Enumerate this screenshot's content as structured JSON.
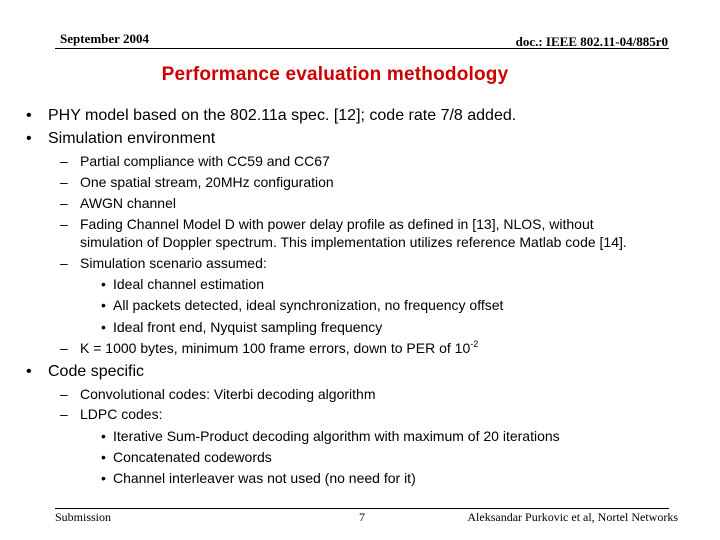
{
  "header": {
    "date": "September 2004",
    "doc_id": "doc.: IEEE 802.11-04/885r0"
  },
  "title": "Performance evaluation methodology",
  "body": {
    "b1": "PHY model based on the 802.11a spec. [12]; code rate 7/8 added.",
    "b2": "Simulation environment",
    "b2_items": [
      "Partial compliance with CC59 and CC67",
      "One spatial stream, 20MHz configuration",
      "AWGN channel",
      "Fading Channel Model D with power delay profile as defined in [13], NLOS,  without",
      "simulation of Doppler spectrum. This implementation utilizes reference Matlab code [14].",
      "Simulation scenario assumed:"
    ],
    "b2_sub": [
      "Ideal channel estimation",
      "All packets detected, ideal synchronization, no frequency offset",
      "Ideal front end, Nyquist sampling frequency"
    ],
    "b2_last": "K = 1000 bytes, minimum 100 frame errors, down to PER of 10",
    "b2_last_exp": "-2",
    "b3": "Code specific",
    "b3_items": [
      "Convolutional codes: Viterbi decoding algorithm",
      "LDPC codes:"
    ],
    "b3_sub": [
      "Iterative Sum-Product decoding algorithm with maximum of 20 iterations",
      "Concatenated codewords",
      "Channel interleaver was not used (no need for it)"
    ]
  },
  "footer": {
    "left": "Submission",
    "page": "7",
    "right": "Aleksandar Purkovic et al, Nortel Networks"
  },
  "colors": {
    "title": "#cc0000"
  }
}
